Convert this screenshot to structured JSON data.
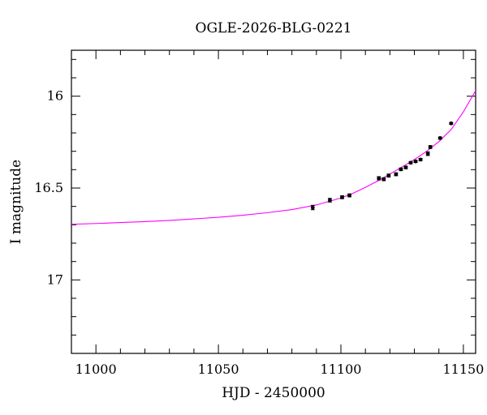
{
  "chart_data": {
    "type": "scatter",
    "title": "OGLE-2026-BLG-0221",
    "xlabel": "HJD - 2450000",
    "ylabel": "I magnitude",
    "xlim": [
      10990,
      11155
    ],
    "ylim": [
      17.4,
      15.75
    ],
    "y_inverted": true,
    "x_major_ticks": [
      11000,
      11050,
      11100,
      11150
    ],
    "x_minor_step": 10,
    "y_major_ticks": [
      16,
      16.5,
      17
    ],
    "y_minor_step": 0.1,
    "x_tick_labels": [
      "11000",
      "11050",
      "11100",
      "11150"
    ],
    "y_tick_labels": [
      "16",
      "16.5",
      "17"
    ],
    "grid": false,
    "model_color": "#ff00ff",
    "point_color": "#000000",
    "model_curve": {
      "x": [
        10990,
        11000,
        11010,
        11020,
        11030,
        11040,
        11050,
        11060,
        11070,
        11080,
        11090,
        11100,
        11105,
        11110,
        11115,
        11120,
        11125,
        11130,
        11135,
        11140,
        11145,
        11150,
        11155
      ],
      "y": [
        16.697,
        16.693,
        16.688,
        16.683,
        16.676,
        16.668,
        16.659,
        16.648,
        16.634,
        16.617,
        16.592,
        16.554,
        16.528,
        16.496,
        16.462,
        16.424,
        16.385,
        16.345,
        16.3,
        16.247,
        16.182,
        16.085,
        15.97
      ]
    },
    "points": [
      {
        "x": 11088.5,
        "y": 16.606,
        "err": 0.012
      },
      {
        "x": 11095.5,
        "y": 16.566,
        "err": 0.01
      },
      {
        "x": 11100.5,
        "y": 16.55,
        "err": 0.008
      },
      {
        "x": 11103.5,
        "y": 16.54,
        "err": 0.008
      },
      {
        "x": 11115.5,
        "y": 16.447,
        "err": 0.009
      },
      {
        "x": 11117.5,
        "y": 16.452,
        "err": 0.008
      },
      {
        "x": 11119.5,
        "y": 16.432,
        "err": 0.008
      },
      {
        "x": 11122.5,
        "y": 16.425,
        "err": 0.008
      },
      {
        "x": 11124.5,
        "y": 16.398,
        "err": 0.007
      },
      {
        "x": 11126.5,
        "y": 16.388,
        "err": 0.007
      },
      {
        "x": 11128.5,
        "y": 16.362,
        "err": 0.006
      },
      {
        "x": 11130.5,
        "y": 16.355,
        "err": 0.006
      },
      {
        "x": 11132.5,
        "y": 16.345,
        "err": 0.006
      },
      {
        "x": 11135.5,
        "y": 16.313,
        "err": 0.01
      },
      {
        "x": 11136.5,
        "y": 16.277,
        "err": 0.008
      },
      {
        "x": 11140.5,
        "y": 16.228,
        "err": 0.006
      },
      {
        "x": 11145.0,
        "y": 16.148,
        "err": 0.005
      }
    ]
  }
}
